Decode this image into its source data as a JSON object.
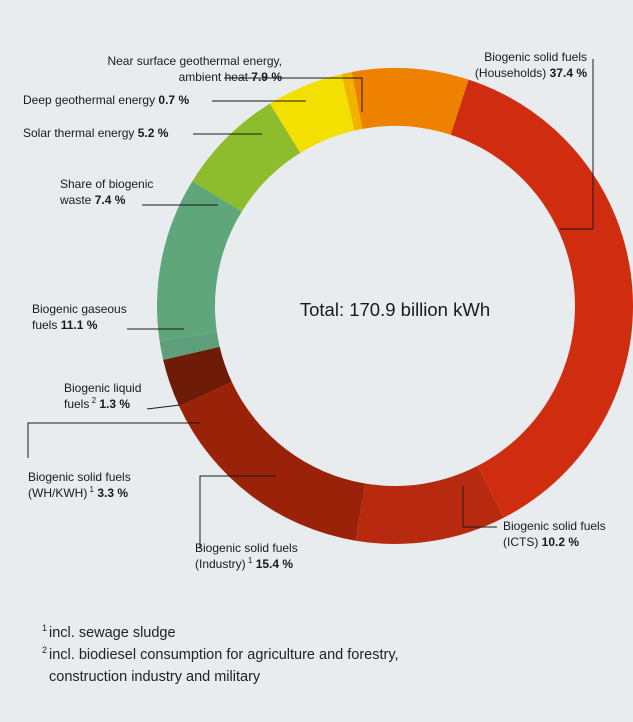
{
  "chart_data": {
    "type": "pie",
    "center_label": "Total: 170.9 billion kWh",
    "slices": [
      {
        "label_lines": [
          "Biogenic solid fuels",
          "(Households)"
        ],
        "value": 37.4,
        "display": "37.4 %",
        "color": "#d02c10"
      },
      {
        "label_lines": [
          "Biogenic solid fuels",
          "(ICTS)"
        ],
        "value": 10.2,
        "display": "10.2 %",
        "color": "#b82a10"
      },
      {
        "label_lines": [
          "Biogenic solid fuels",
          "(Industry)"
        ],
        "sup": "1",
        "value": 15.4,
        "display": "15.4 %",
        "color": "#9a2208"
      },
      {
        "label_lines": [
          "Biogenic solid fuels",
          "(WH/KWH)"
        ],
        "sup": "1",
        "value": 3.3,
        "display": "3.3 %",
        "color": "#6e1c08"
      },
      {
        "label_lines": [
          "Biogenic liquid",
          "fuels"
        ],
        "sup": "2",
        "value": 1.3,
        "display": "1.3 %",
        "color": "#5f9e7a"
      },
      {
        "label_lines": [
          "Biogenic gaseous",
          "fuels"
        ],
        "value": 11.1,
        "display": "11.1 %",
        "color": "#5fa67b"
      },
      {
        "label_lines": [
          "Share of biogenic",
          "waste"
        ],
        "value": 7.4,
        "display": "7.4 %",
        "color": "#8dbc2c"
      },
      {
        "label_lines": [
          "Solar thermal energy"
        ],
        "value": 5.2,
        "display": "5.2 %",
        "color": "#f4e000"
      },
      {
        "label_lines": [
          "Deep geothermal energy"
        ],
        "value": 0.7,
        "display": "0.7 %",
        "color": "#f2b200"
      },
      {
        "label_lines": [
          "Near surface geothermal energy,",
          "ambient heat"
        ],
        "value": 7.9,
        "display": "7.9 %",
        "color": "#ee8100"
      }
    ]
  },
  "footnotes": [
    {
      "mark": "1",
      "lines": [
        "incl. sewage sludge"
      ]
    },
    {
      "mark": "2",
      "lines": [
        "incl. biodiesel consumption for agriculture and forestry,",
        "construction industry and military"
      ]
    }
  ]
}
